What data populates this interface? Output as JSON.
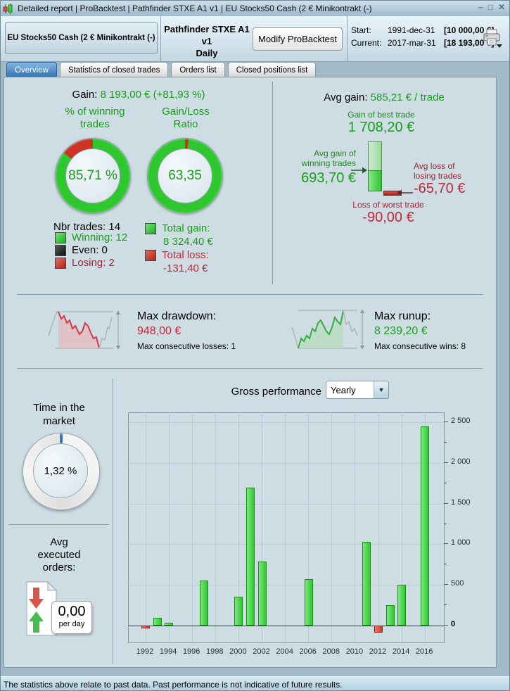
{
  "title_bar": {
    "text": "Detailed report | ProBacktest | Pathfinder STXE A1 v1 | EU Stocks50 Cash (2 € Minikontrakt (-)",
    "minimize_icon": "–",
    "maximize_icon": "□",
    "close_icon": "✕"
  },
  "header": {
    "instrument": "EU Stocks50 Cash (2 € Minikontrakt (-)",
    "strategy": "Pathfinder STXE A1 v1",
    "timeframe": "Daily",
    "modify_button": "Modify ProBacktest",
    "start_label": "Start:",
    "start_date": "1991-dec-31",
    "start_value": "[10 000,00 €]",
    "current_label": "Current:",
    "current_date": "2017-mar-31",
    "current_value": "[18 193,00 €]"
  },
  "tabs": [
    {
      "label": "Overview",
      "selected": true
    },
    {
      "label": "Statistics of closed trades",
      "selected": false
    },
    {
      "label": "Orders list",
      "selected": false
    },
    {
      "label": "Closed positions list",
      "selected": false
    }
  ],
  "overview": {
    "gain_label": "Gain:",
    "gain_value": "8 193,00 € (+81,93 %)",
    "winning_donut": {
      "title": "% of winning\ntrades",
      "value": "85,71 %",
      "green_pct": 85.71,
      "red_first": false
    },
    "ratio_donut": {
      "title": "Gain/Loss\nRatio",
      "value": "63,35",
      "green_pct": 98.45,
      "red_first": true
    },
    "nbr_trades": "Nbr trades: 14",
    "legend": [
      {
        "label": "Winning: 12",
        "color": "green"
      },
      {
        "label": "Even: 0",
        "color": "black"
      },
      {
        "label": "Losing: 2",
        "color": "red"
      }
    ],
    "total_gain_label": "Total gain:",
    "total_gain_value": "8 324,40 €",
    "total_loss_label": "Total loss:",
    "total_loss_value": "-131,40 €",
    "avg_gain_label": "Avg gain:",
    "avg_gain_value": "585,21 € / trade",
    "best_trade_label": "Gain of best trade",
    "best_trade_value": "1 708,20 €",
    "avg_win_label": "Avg gain of\nwinning trades",
    "avg_win_value": "693,70 €",
    "avg_loss_label": "Avg loss of\nlosing trades",
    "avg_loss_value": "-65,70 €",
    "worst_trade_label": "Loss of worst trade",
    "worst_trade_value": "-90,00 €",
    "max_drawdown": {
      "label": "Max drawdown:",
      "value": "948,00 €",
      "sub": "Max consecutive losses: 1"
    },
    "max_runup": {
      "label": "Max runup:",
      "value": "8 239,20 €",
      "sub": "Max consecutive wins: 8"
    },
    "time_in_market": {
      "title": "Time in the\nmarket",
      "value": "1,32 %",
      "pct": 1.32
    },
    "avg_orders": {
      "title": "Avg\nexecuted\norders:",
      "value": "0,00",
      "unit": "per day"
    },
    "gross_performance": {
      "title": "Gross performance",
      "period": "Yearly"
    }
  },
  "chart_data": {
    "type": "bar",
    "title": "Gross performance",
    "period": "Yearly",
    "unit": "€",
    "bars": [
      {
        "year": 1992,
        "value": -41
      },
      {
        "year": 1993,
        "value": 90
      },
      {
        "year": 1994,
        "value": 35
      },
      {
        "year": 1997,
        "value": 555
      },
      {
        "year": 2000,
        "value": 350
      },
      {
        "year": 2001,
        "value": 1700
      },
      {
        "year": 2002,
        "value": 790
      },
      {
        "year": 2006,
        "value": 570
      },
      {
        "year": 2011,
        "value": 1030
      },
      {
        "year": 2012,
        "value": -90
      },
      {
        "year": 2013,
        "value": 250
      },
      {
        "year": 2014,
        "value": 500
      },
      {
        "year": 2016,
        "value": 2450
      }
    ],
    "x_tick_labels": [
      "1992",
      "1994",
      "1996",
      "1998",
      "2000",
      "2002",
      "2004",
      "2006",
      "2008",
      "2010",
      "2012",
      "2014",
      "2016"
    ],
    "y_ticks": [
      {
        "value": 0,
        "label": "0"
      },
      {
        "value": 500,
        "label": "500"
      },
      {
        "value": 1000,
        "label": "1 000"
      },
      {
        "value": 1500,
        "label": "1 500"
      },
      {
        "value": 2000,
        "label": "2 000"
      },
      {
        "value": 2500,
        "label": "2 500"
      }
    ],
    "y_minor_ticks": [
      250,
      750,
      1250,
      1750,
      2250
    ],
    "ylim": [
      -210,
      2615
    ],
    "grid": true,
    "legend_position": "none",
    "colors": {
      "positive": "#2dc92d",
      "positive_border": "#169016",
      "negative": "#cc3a2e",
      "negative_border": "#8d1f16",
      "zero_line": "#2233cc",
      "grid": "#b9cbd4"
    }
  },
  "status_bar": {
    "text": "The statistics above relate to past data. Past performance is not indicative of future results."
  }
}
